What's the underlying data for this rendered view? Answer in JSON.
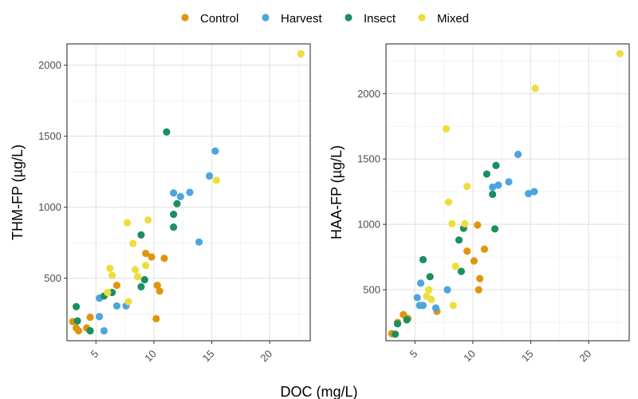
{
  "chart_data": {
    "type": "scatter",
    "xlabel": "DOC (mg/L)",
    "colors": {
      "Control": "#E0950F",
      "Harvest": "#4BA6DF",
      "Insect": "#1B8F62",
      "Mixed": "#EFDD3A"
    },
    "legend": {
      "position": "top",
      "entries": [
        "Control",
        "Harvest",
        "Insect",
        "Mixed"
      ]
    },
    "grid": true,
    "panels": [
      {
        "ylabel": "THM-FP (µg/L)",
        "xlim": [
          2.5,
          23.5
        ],
        "ylim": [
          60,
          2150
        ],
        "xticks": [
          5,
          10,
          15,
          20
        ],
        "yticks": [
          500,
          1000,
          1500,
          2000
        ],
        "series": [
          {
            "name": "Control",
            "points": [
              [
                3.0,
                195
              ],
              [
                3.3,
                150
              ],
              [
                3.5,
                130
              ],
              [
                4.2,
                150
              ],
              [
                4.5,
                225
              ],
              [
                6.8,
                450
              ],
              [
                9.3,
                675
              ],
              [
                9.8,
                650
              ],
              [
                10.2,
                215
              ],
              [
                10.3,
                450
              ],
              [
                10.5,
                410
              ],
              [
                10.9,
                640
              ]
            ]
          },
          {
            "name": "Harvest",
            "points": [
              [
                4.5,
                130
              ],
              [
                5.3,
                360
              ],
              [
                5.3,
                230
              ],
              [
                5.7,
                130
              ],
              [
                6.8,
                305
              ],
              [
                7.6,
                305
              ],
              [
                11.7,
                1100
              ],
              [
                12.3,
                1075
              ],
              [
                13.1,
                1105
              ],
              [
                13.9,
                755
              ],
              [
                14.8,
                1220
              ],
              [
                15.3,
                1395
              ]
            ]
          },
          {
            "name": "Insect",
            "points": [
              [
                3.3,
                300
              ],
              [
                3.4,
                200
              ],
              [
                4.5,
                130
              ],
              [
                5.7,
                375
              ],
              [
                6.4,
                400
              ],
              [
                8.9,
                805
              ],
              [
                8.9,
                440
              ],
              [
                9.2,
                490
              ],
              [
                11.1,
                1530
              ],
              [
                11.7,
                950
              ],
              [
                11.7,
                860
              ],
              [
                12.0,
                1025
              ]
            ]
          },
          {
            "name": "Mixed",
            "points": [
              [
                6.0,
                400
              ],
              [
                6.2,
                570
              ],
              [
                6.4,
                520
              ],
              [
                7.7,
                890
              ],
              [
                7.8,
                335
              ],
              [
                8.2,
                745
              ],
              [
                8.4,
                560
              ],
              [
                8.6,
                510
              ],
              [
                9.3,
                590
              ],
              [
                9.5,
                910
              ],
              [
                15.4,
                1190
              ],
              [
                22.7,
                2080
              ]
            ]
          }
        ]
      },
      {
        "ylabel": "HAA-FP (µg/L)",
        "xlim": [
          2.5,
          23.5
        ],
        "ylim": [
          110,
          2380
        ],
        "xticks": [
          5,
          10,
          15,
          20
        ],
        "yticks": [
          500,
          1000,
          1500,
          2000
        ],
        "series": [
          {
            "name": "Control",
            "points": [
              [
                3.0,
                165
              ],
              [
                3.5,
                250
              ],
              [
                4.0,
                310
              ],
              [
                4.4,
                280
              ],
              [
                6.9,
                335
              ],
              [
                9.5,
                795
              ],
              [
                10.1,
                720
              ],
              [
                10.4,
                995
              ],
              [
                10.5,
                500
              ],
              [
                10.6,
                585
              ],
              [
                11.0,
                810
              ]
            ]
          },
          {
            "name": "Harvest",
            "points": [
              [
                5.2,
                440
              ],
              [
                5.4,
                380
              ],
              [
                5.5,
                550
              ],
              [
                5.7,
                380
              ],
              [
                6.8,
                360
              ],
              [
                7.8,
                500
              ],
              [
                11.7,
                1285
              ],
              [
                12.2,
                1300
              ],
              [
                13.1,
                1325
              ],
              [
                13.9,
                1535
              ],
              [
                14.8,
                1235
              ],
              [
                15.3,
                1250
              ]
            ]
          },
          {
            "name": "Insect",
            "points": [
              [
                3.3,
                160
              ],
              [
                3.5,
                240
              ],
              [
                4.3,
                270
              ],
              [
                5.7,
                730
              ],
              [
                6.3,
                600
              ],
              [
                8.8,
                880
              ],
              [
                9.0,
                640
              ],
              [
                9.2,
                970
              ],
              [
                11.2,
                1385
              ],
              [
                11.7,
                1230
              ],
              [
                11.9,
                965
              ],
              [
                12.0,
                1450
              ]
            ]
          },
          {
            "name": "Mixed",
            "points": [
              [
                6.0,
                450
              ],
              [
                6.2,
                500
              ],
              [
                6.4,
                425
              ],
              [
                7.7,
                1730
              ],
              [
                7.9,
                1170
              ],
              [
                8.2,
                1005
              ],
              [
                8.3,
                380
              ],
              [
                8.5,
                680
              ],
              [
                9.3,
                1005
              ],
              [
                9.5,
                1290
              ],
              [
                15.4,
                2040
              ],
              [
                22.7,
                2305
              ]
            ]
          }
        ]
      }
    ]
  }
}
